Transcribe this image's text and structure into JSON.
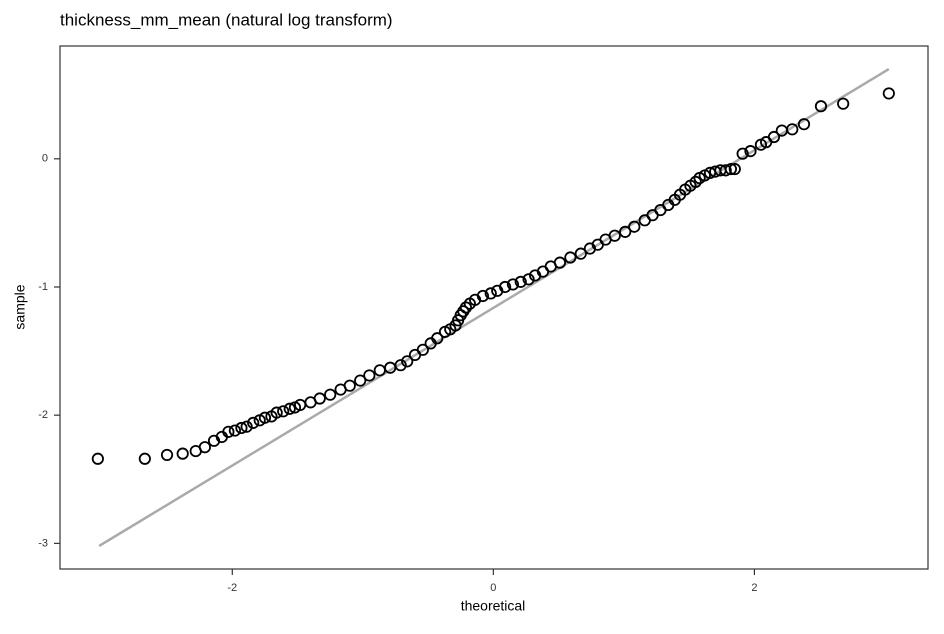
{
  "chart_data": {
    "type": "scatter",
    "title": "thickness_mm_mean (natural log transform)",
    "x_label": "theoretical",
    "y_label": "sample",
    "x": [
      -3.03,
      -2.67,
      -2.5,
      -2.38,
      -2.28,
      -2.21,
      -2.14,
      -2.08,
      -2.03,
      -1.98,
      -1.93,
      -1.89,
      -1.84,
      -1.79,
      -1.75,
      -1.7,
      -1.66,
      -1.61,
      -1.56,
      -1.52,
      -1.48,
      -1.4,
      -1.33,
      -1.25,
      -1.17,
      -1.1,
      -1.02,
      -0.95,
      -0.87,
      -0.79,
      -0.71,
      -0.66,
      -0.6,
      -0.54,
      -0.48,
      -0.43,
      -0.37,
      -0.33,
      -0.29,
      -0.27,
      -0.25,
      -0.23,
      -0.21,
      -0.18,
      -0.14,
      -0.08,
      -0.02,
      0.03,
      0.09,
      0.15,
      0.21,
      0.27,
      0.32,
      0.38,
      0.44,
      0.51,
      0.59,
      0.67,
      0.74,
      0.8,
      0.86,
      0.93,
      1.01,
      1.08,
      1.16,
      1.22,
      1.28,
      1.34,
      1.39,
      1.43,
      1.47,
      1.51,
      1.55,
      1.58,
      1.62,
      1.66,
      1.7,
      1.74,
      1.78,
      1.82,
      1.85,
      1.91,
      1.97,
      2.05,
      2.09,
      2.15,
      2.21,
      2.29,
      2.38,
      2.51,
      2.68,
      3.03
    ],
    "values": [
      -2.34,
      -2.34,
      -2.31,
      -2.3,
      -2.28,
      -2.25,
      -2.2,
      -2.17,
      -2.13,
      -2.12,
      -2.1,
      -2.09,
      -2.06,
      -2.04,
      -2.02,
      -2.01,
      -1.98,
      -1.97,
      -1.95,
      -1.94,
      -1.92,
      -1.9,
      -1.87,
      -1.84,
      -1.8,
      -1.77,
      -1.73,
      -1.69,
      -1.65,
      -1.63,
      -1.61,
      -1.58,
      -1.53,
      -1.49,
      -1.44,
      -1.4,
      -1.35,
      -1.33,
      -1.3,
      -1.26,
      -1.22,
      -1.19,
      -1.16,
      -1.13,
      -1.1,
      -1.07,
      -1.05,
      -1.03,
      -1.0,
      -0.98,
      -0.96,
      -0.94,
      -0.91,
      -0.88,
      -0.84,
      -0.81,
      -0.77,
      -0.74,
      -0.7,
      -0.67,
      -0.63,
      -0.6,
      -0.57,
      -0.53,
      -0.48,
      -0.44,
      -0.4,
      -0.36,
      -0.32,
      -0.28,
      -0.24,
      -0.21,
      -0.18,
      -0.15,
      -0.13,
      -0.11,
      -0.1,
      -0.09,
      -0.09,
      -0.08,
      -0.08,
      0.04,
      0.06,
      0.11,
      0.13,
      0.17,
      0.22,
      0.23,
      0.27,
      0.41,
      0.43,
      0.51
    ],
    "color": "#000000",
    "reference_line": {
      "x": [
        -3.02,
        3.03
      ],
      "y": [
        -3.02,
        0.7
      ],
      "color": "#aaaaaa"
    },
    "xlim": [
      -3.32,
      3.33
    ],
    "ylim": [
      -3.2,
      0.88
    ],
    "xticks": [
      -2,
      0,
      2
    ],
    "yticks": [
      -3,
      -2,
      -1,
      0
    ],
    "grid": false
  }
}
